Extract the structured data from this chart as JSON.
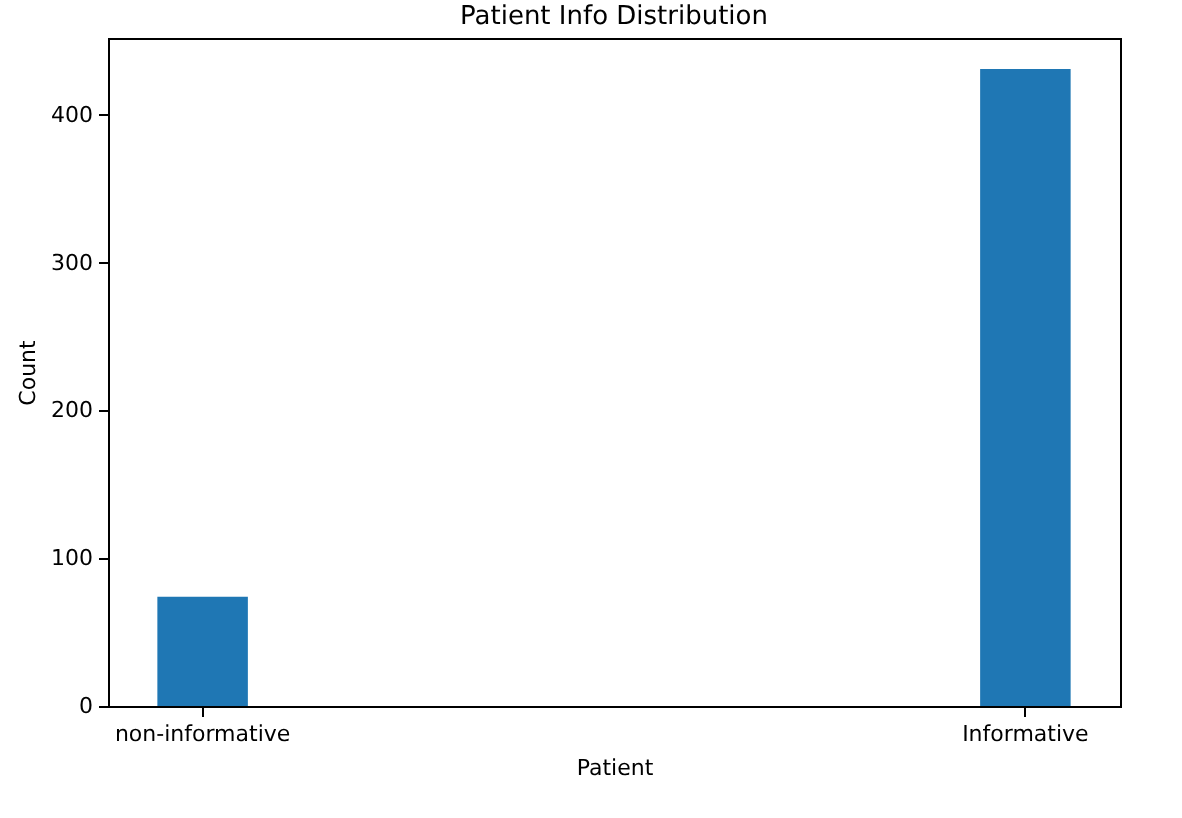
{
  "chart_data": {
    "type": "bar",
    "title": "Patient Info Distribution",
    "xlabel": "Patient",
    "ylabel": "Count",
    "categories": [
      "non-informative",
      "Informative"
    ],
    "values": [
      74,
      431
    ],
    "color": "#1f77b4",
    "ylim": [
      0,
      452
    ],
    "yticks": [
      0,
      100,
      200,
      300,
      400
    ],
    "grid": false
  }
}
